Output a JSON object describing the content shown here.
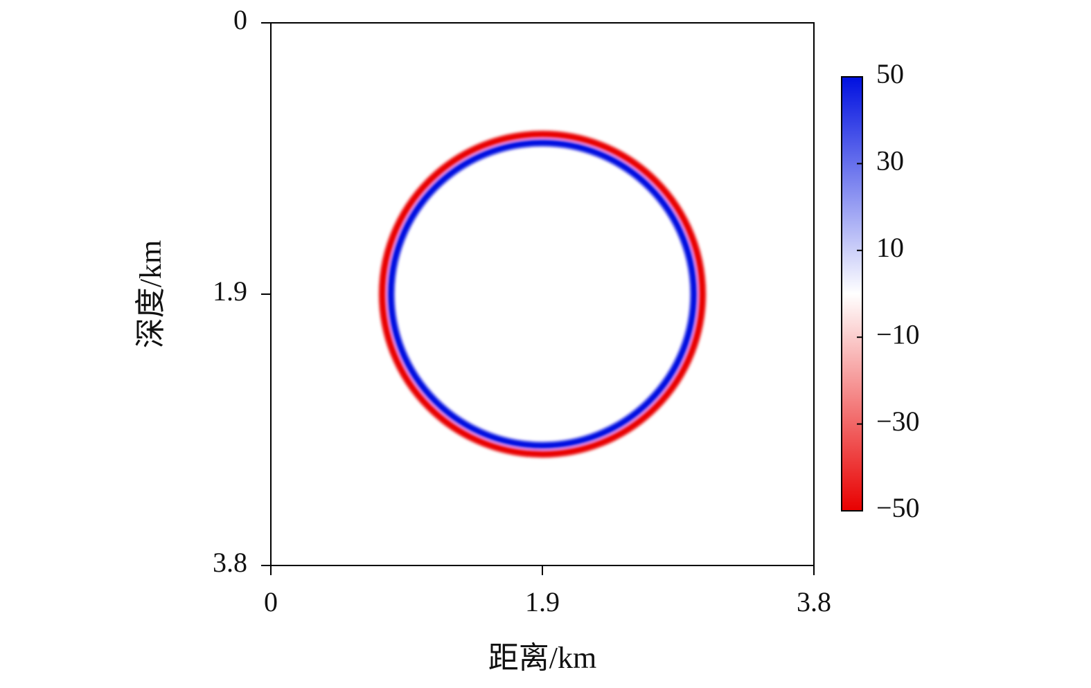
{
  "chart_data": {
    "type": "ring",
    "xlabel": "距离/km",
    "ylabel": "深度/km",
    "xlim": [
      0,
      3.8
    ],
    "ylim": [
      3.8,
      0
    ],
    "xticks": [
      0,
      1.9,
      3.8
    ],
    "yticks": [
      0,
      1.9,
      3.8
    ],
    "center": [
      1.9,
      1.9
    ],
    "rings": [
      {
        "radius": 1.12,
        "value": -50
      },
      {
        "radius": 1.06,
        "value": 50
      }
    ],
    "colormap": [
      "#e80000",
      "#ffffff",
      "#0010e0"
    ],
    "clim": [
      -50,
      50
    ],
    "cticks": [
      {
        "value": -50,
        "label": "−50"
      },
      {
        "value": -30,
        "label": "−30"
      },
      {
        "value": -10,
        "label": "−10"
      },
      10,
      30,
      50
    ]
  }
}
